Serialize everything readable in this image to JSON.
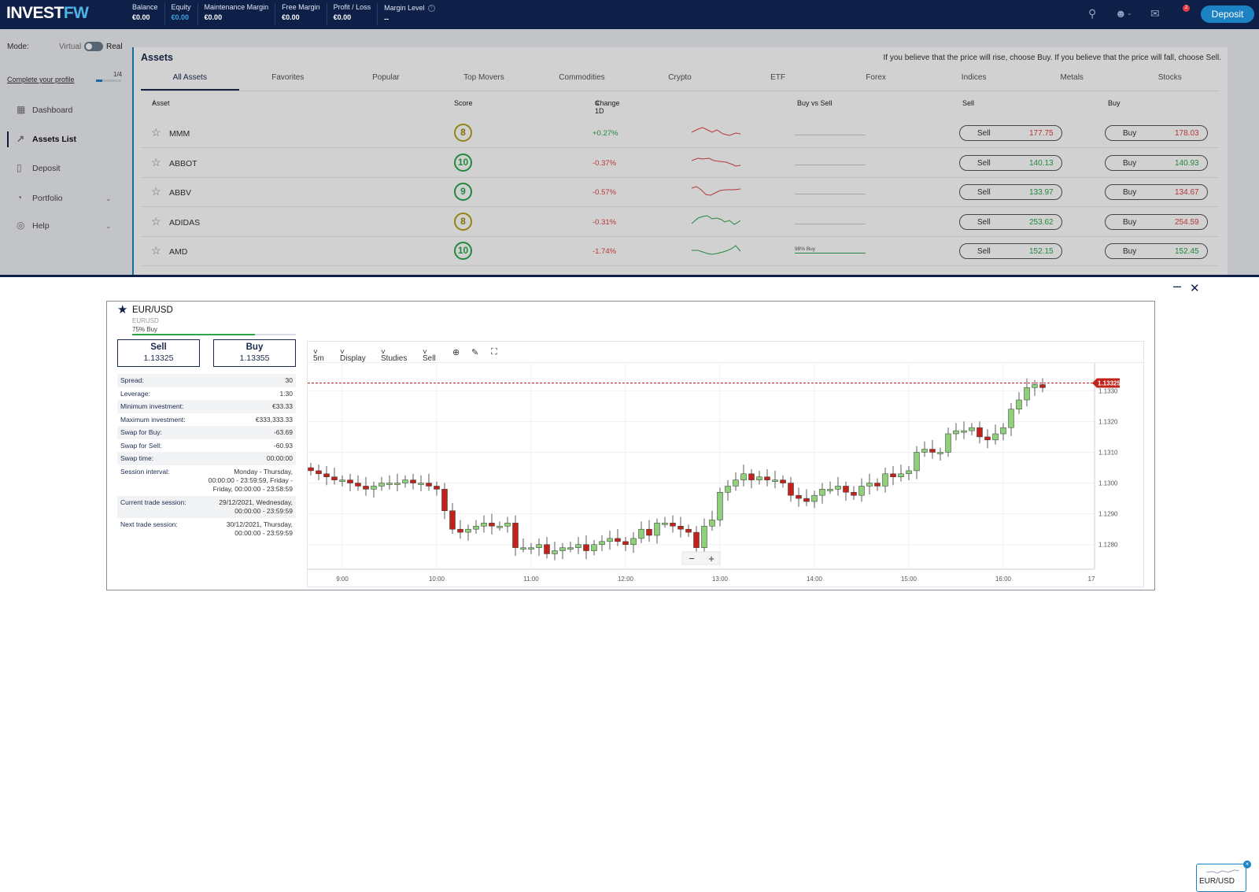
{
  "header": {
    "logo_a": "INVEST",
    "logo_b": "FW",
    "metrics": [
      {
        "label": "Balance",
        "value": "€0.00",
        "blue": false
      },
      {
        "label": "Equity",
        "value": "€0.00",
        "blue": true
      },
      {
        "label": "Maintenance Margin",
        "value": "€0.00",
        "blue": false
      },
      {
        "label": "Free Margin",
        "value": "€0.00",
        "blue": false
      },
      {
        "label": "Profit / Loss",
        "value": "€0.00",
        "blue": false
      },
      {
        "label": "Margin Level",
        "value": "--",
        "blue": false
      }
    ],
    "notif_count": "2",
    "deposit_label": "Deposit"
  },
  "sidebar": {
    "mode_label": "Mode:",
    "virtual_label": "Virtual",
    "real_label": "Real",
    "complete_profile": "Complete your profile",
    "profile_progress": "1/4",
    "items": [
      {
        "label": "Dashboard",
        "icon": "grid-icon"
      },
      {
        "label": "Assets List",
        "icon": "chart-line-icon"
      },
      {
        "label": "Deposit",
        "icon": "document-icon"
      },
      {
        "label": "Portfolio",
        "icon": "pie-chart-icon"
      },
      {
        "label": "Help",
        "icon": "lifebuoy-icon"
      }
    ]
  },
  "assets": {
    "title": "Assets",
    "hint": "If you believe that the price will rise, choose Buy. If you believe that the price will fall, choose Sell.",
    "tabs": [
      "All Assets",
      "Favorites",
      "Popular",
      "Top Movers",
      "Commodities",
      "Crypto",
      "ETF",
      "Forex",
      "Indices",
      "Metals",
      "Stocks"
    ],
    "columns": {
      "asset": "Asset",
      "score": "Score",
      "change": "Change 1D",
      "bvs": "Buy vs Sell",
      "sell": "Sell",
      "buy": "Buy"
    },
    "sell_label": "Sell",
    "buy_label": "Buy",
    "rows": [
      {
        "name": "MMM",
        "score": "8",
        "change": "+0.27%",
        "up": true,
        "sell": "177.75",
        "buy": "178.03",
        "bvs_label": "",
        "spark": "red"
      },
      {
        "name": "ABBOT",
        "score": "10",
        "change": "-0.37%",
        "up": false,
        "sell": "140.13",
        "buy": "140.93",
        "bvs_label": "",
        "spark": "red"
      },
      {
        "name": "ABBV",
        "score": "9",
        "change": "-0.57%",
        "up": false,
        "sell": "133.97",
        "buy": "134.67",
        "bvs_label": "",
        "spark": "red"
      },
      {
        "name": "ADIDAS",
        "score": "8",
        "change": "-0.31%",
        "up": false,
        "sell": "253.62",
        "buy": "254.59",
        "bvs_label": "",
        "spark": "green"
      },
      {
        "name": "AMD",
        "score": "10",
        "change": "-1.74%",
        "up": false,
        "sell": "152.15",
        "buy": "152.45",
        "bvs_label": "98% Buy",
        "spark": "green"
      }
    ]
  },
  "instrument": {
    "name": "EUR/USD",
    "code": "EURUSD",
    "buy_pct_label": "75% Buy",
    "buy_fraction": 0.75,
    "sell_label": "Sell",
    "sell_price": "1.13325",
    "buy_label": "Buy",
    "buy_price": "1.13355",
    "info": [
      {
        "k": "Spread:",
        "v": "30"
      },
      {
        "k": "Leverage:",
        "v": "1:30"
      },
      {
        "k": "Minimum investment:",
        "v": "€33.33"
      },
      {
        "k": "Maximum investment:",
        "v": "€333,333.33"
      },
      {
        "k": "Swap for Buy:",
        "v": "-63.69"
      },
      {
        "k": "Swap for Sell:",
        "v": "-60.93"
      },
      {
        "k": "Swap time:",
        "v": "00:00:00"
      },
      {
        "k": "Session interval:",
        "v": "Monday - Thursday, 00:00:00 - 23:59:59, Friday - Friday, 00:00:00 - 23:58:59"
      },
      {
        "k": "Current trade session:",
        "v": "29/12/2021, Wednesday, 00:00:00 - 23:59:59"
      },
      {
        "k": "Next trade session:",
        "v": "30/12/2021, Thursday, 00:00:00 - 23:59:59"
      }
    ],
    "toolbar": {
      "interval": "5m",
      "display": "Display",
      "studies": "Studies",
      "side": "Sell"
    },
    "mini_label": "EUR/USD"
  },
  "chart_data": {
    "type": "candlestick",
    "x_ticks": [
      "9:00",
      "10:00",
      "11:00",
      "12:00",
      "13:00",
      "14:00",
      "15:00",
      "16:00",
      "17"
    ],
    "y_ticks": [
      "1.1280",
      "1.1290",
      "1.1300",
      "1.1310",
      "1.1320",
      "1.1330"
    ],
    "ylim": [
      1.1272,
      1.1338
    ],
    "current_price": "1.13325",
    "colors": {
      "up": "#8fd07b",
      "down": "#c0231b",
      "price_line": "#c0231b"
    },
    "closes": [
      1.1304,
      1.1303,
      1.1302,
      1.1301,
      1.1301,
      1.13,
      1.1299,
      1.1298,
      1.1299,
      1.13,
      1.13,
      1.13,
      1.1301,
      1.13,
      1.13,
      1.1299,
      1.1298,
      1.1291,
      1.1285,
      1.1284,
      1.1285,
      1.1286,
      1.1287,
      1.1286,
      1.1286,
      1.1287,
      1.1279,
      1.1279,
      1.1279,
      1.128,
      1.1277,
      1.1278,
      1.1279,
      1.1279,
      1.128,
      1.1278,
      1.128,
      1.1281,
      1.1282,
      1.1281,
      1.128,
      1.1282,
      1.1285,
      1.1283,
      1.1287,
      1.1287,
      1.1286,
      1.1285,
      1.1284,
      1.1279,
      1.1286,
      1.1288,
      1.1297,
      1.1299,
      1.1301,
      1.1303,
      1.1301,
      1.1302,
      1.1301,
      1.1301,
      1.13,
      1.1296,
      1.1295,
      1.1294,
      1.1296,
      1.1298,
      1.1298,
      1.1299,
      1.1297,
      1.1296,
      1.1299,
      1.13,
      1.1299,
      1.1303,
      1.1302,
      1.1303,
      1.1304,
      1.131,
      1.1311,
      1.131,
      1.131,
      1.1316,
      1.1317,
      1.1317,
      1.1318,
      1.1315,
      1.1314,
      1.1316,
      1.1318,
      1.1324,
      1.1327,
      1.1331,
      1.1332,
      1.1331
    ]
  }
}
